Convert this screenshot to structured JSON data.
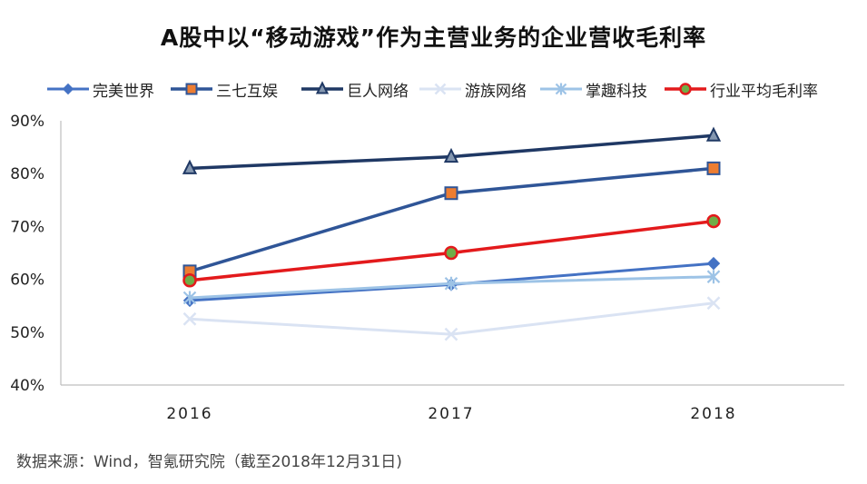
{
  "source_note": "数据来源：Wind，智氪研究院（截至2018年12月31日)",
  "chart_data": {
    "type": "line",
    "title": "A股中以“移动游戏”作为主营业务的企业营收毛利率",
    "xlabel": "",
    "ylabel": "",
    "x": [
      "2016",
      "2017",
      "2018"
    ],
    "ylim": [
      40,
      90
    ],
    "y_ticks": [
      "40%",
      "50%",
      "60%",
      "70%",
      "80%",
      "90%"
    ],
    "y_tick_values": [
      40,
      50,
      60,
      70,
      80,
      90
    ],
    "grid": false,
    "legend_position": "top",
    "series": [
      {
        "name": "完美世界",
        "values": [
          56,
          59,
          63
        ],
        "color": "#4472c4",
        "marker": "diamond",
        "fill": "#4472c4",
        "width": 3
      },
      {
        "name": "三七互娱",
        "values": [
          61.5,
          76.3,
          81
        ],
        "color": "#2f5597",
        "marker": "square",
        "fill": "#ed7d31",
        "width": 3.5
      },
      {
        "name": "巨人网络",
        "values": [
          81,
          83.2,
          87.2
        ],
        "color": "#1f3864",
        "marker": "triangle",
        "fill": "#8497b0",
        "width": 3.5
      },
      {
        "name": "游族网络",
        "values": [
          52.5,
          49.6,
          55.5
        ],
        "color": "#dae3f3",
        "marker": "x",
        "fill": "#dae3f3",
        "width": 3
      },
      {
        "name": "掌趣科技",
        "values": [
          56.5,
          59.2,
          60.5
        ],
        "color": "#9dc3e6",
        "marker": "asterisk",
        "fill": "#9dc3e6",
        "width": 3
      },
      {
        "name": "行业平均毛利率",
        "values": [
          59.8,
          65,
          71
        ],
        "color": "#e31a1c",
        "marker": "circle",
        "fill": "#70ad47",
        "width": 3.5
      }
    ]
  }
}
